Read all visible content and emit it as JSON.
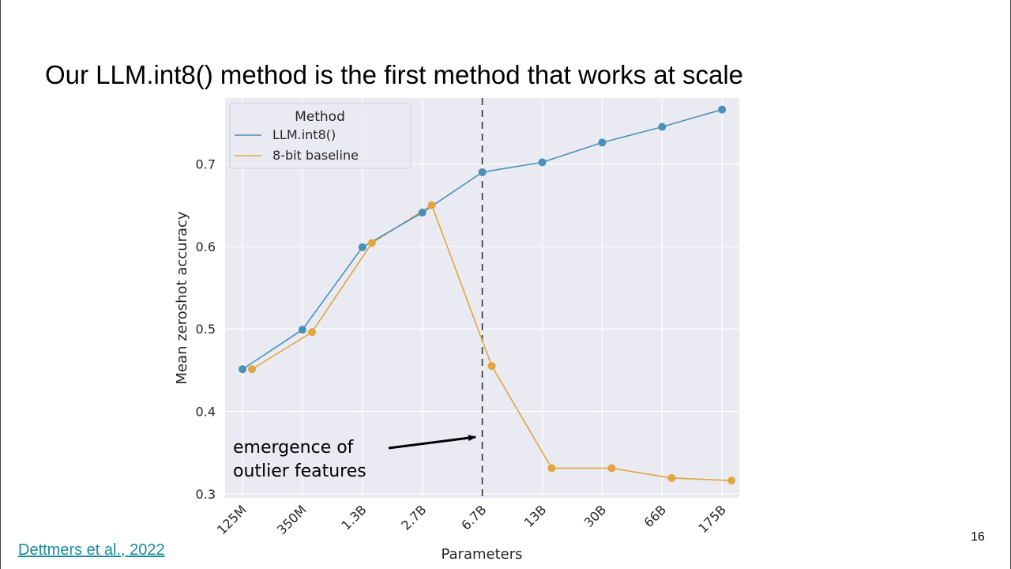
{
  "slide": {
    "title": "Our LLM.int8() method is the first method that works at scale",
    "citation": "Dettmers et al., 2022",
    "page_number": "16"
  },
  "colors": {
    "llm_int8": "#4a90b8",
    "baseline": "#e2a640",
    "plot_bg": "#eaeaf2",
    "grid": "#ffffff"
  },
  "chart_data": {
    "type": "line",
    "title": "",
    "xlabel": "Parameters",
    "ylabel": "Mean zeroshot accuracy",
    "categories": [
      "125M",
      "350M",
      "1.3B",
      "2.7B",
      "6.7B",
      "13B",
      "30B",
      "66B",
      "175B"
    ],
    "ylim": [
      0.295,
      0.78
    ],
    "yticks": [
      0.3,
      0.4,
      0.5,
      0.6,
      0.7
    ],
    "legend_title": "Method",
    "legend_position": "top-left",
    "series": [
      {
        "name": "LLM.int8()",
        "values": [
          0.451,
          0.499,
          0.599,
          0.641,
          0.69,
          0.702,
          0.726,
          0.745,
          0.766
        ]
      },
      {
        "name": "8-bit baseline",
        "values": [
          0.451,
          0.496,
          0.604,
          0.65,
          0.455,
          0.331,
          0.331,
          0.319,
          0.316
        ]
      }
    ],
    "vertical_line_at": "6.7B",
    "annotation": {
      "line1": "emergence of",
      "line2": "outlier features"
    }
  }
}
